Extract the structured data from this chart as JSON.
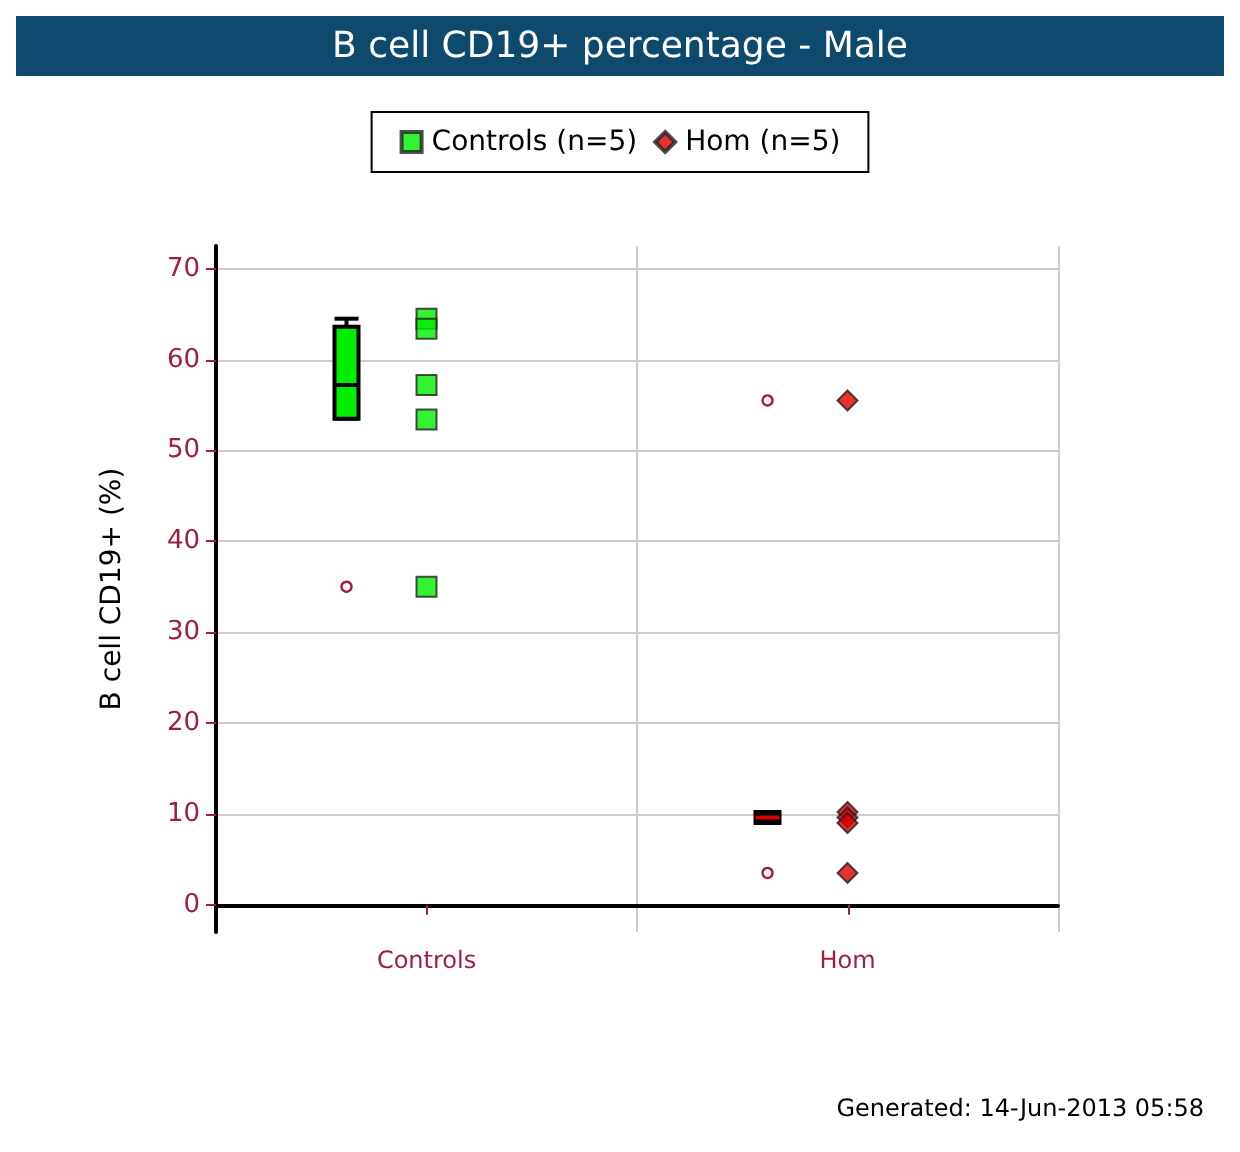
{
  "chart_data": {
    "type": "box",
    "title": "B cell CD19+ percentage - Male",
    "ylabel": "B cell CD19+ (%)",
    "categories": [
      "Controls",
      "Hom"
    ],
    "boxes": [
      {
        "low": 53.5,
        "q1": 53.5,
        "median": 57.2,
        "q3": 63.6,
        "high": 64.5,
        "outliers": [
          35
        ]
      },
      {
        "low": 9,
        "q1": 9,
        "median": 9.6,
        "q3": 10.2,
        "high": 10.2,
        "outliers": [
          55.5,
          3.5
        ]
      }
    ],
    "colors": [
      "#00ee00",
      "#000000"
    ],
    "series": [
      {
        "type": "scatter",
        "name": "Controls (n=5)",
        "color": "#00ee00",
        "marker": "square",
        "x": [
          "Controls",
          "Controls",
          "Controls",
          "Controls",
          "Controls"
        ],
        "values": [
          64.5,
          63.4,
          57.2,
          53.4,
          35
        ]
      },
      {
        "type": "scatter",
        "name": "Hom (n=5)",
        "color": "#dd0000",
        "marker": "diamond",
        "x": [
          "Hom",
          "Hom",
          "Hom",
          "Hom",
          "Hom"
        ],
        "values": [
          55.5,
          10.2,
          9.6,
          9,
          3.5
        ]
      }
    ],
    "ylim": [
      -3,
      72.5
    ],
    "yticks": [
      0,
      10,
      20,
      30,
      40,
      50,
      60,
      70
    ],
    "grid": true,
    "legend": "top",
    "annotations": [
      "Generated: 14-Jun-2013 05:58"
    ]
  }
}
